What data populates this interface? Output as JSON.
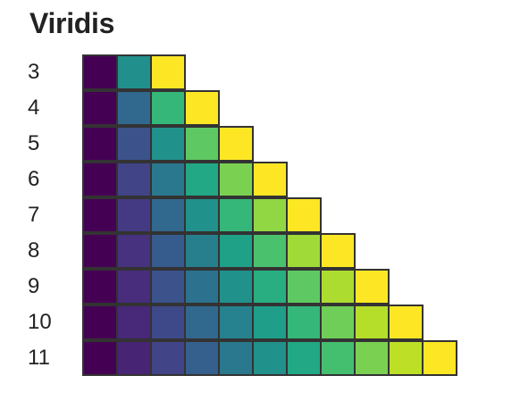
{
  "title": "Viridis",
  "rows": [
    {
      "label": "3",
      "colors": [
        "#440154",
        "#21908d",
        "#fde725"
      ]
    },
    {
      "label": "4",
      "colors": [
        "#440154",
        "#31688e",
        "#35b779",
        "#fde725"
      ]
    },
    {
      "label": "5",
      "colors": [
        "#440154",
        "#3b528b",
        "#21918c",
        "#5ec962",
        "#fde725"
      ]
    },
    {
      "label": "6",
      "colors": [
        "#440154",
        "#414487",
        "#2a788e",
        "#22a884",
        "#7ad151",
        "#fde725"
      ]
    },
    {
      "label": "7",
      "colors": [
        "#440154",
        "#443983",
        "#31688e",
        "#21918c",
        "#35b779",
        "#90d743",
        "#fde725"
      ]
    },
    {
      "label": "8",
      "colors": [
        "#440154",
        "#46327e",
        "#365c8d",
        "#277f8e",
        "#1fa187",
        "#4ac16d",
        "#a0da39",
        "#fde725"
      ]
    },
    {
      "label": "9",
      "colors": [
        "#440154",
        "#472d7b",
        "#3b528b",
        "#2c728e",
        "#21918c",
        "#28ae80",
        "#5ec962",
        "#addc30",
        "#fde725"
      ]
    },
    {
      "label": "10",
      "colors": [
        "#440154",
        "#482878",
        "#3e4989",
        "#31688e",
        "#26828e",
        "#1f9e89",
        "#35b779",
        "#6ece58",
        "#b5de2b",
        "#fde725"
      ]
    },
    {
      "label": "11",
      "colors": [
        "#440154",
        "#482475",
        "#414487",
        "#355f8d",
        "#2a788e",
        "#21918c",
        "#22a884",
        "#44bf70",
        "#7ad151",
        "#bddf26",
        "#fde725"
      ]
    }
  ]
}
